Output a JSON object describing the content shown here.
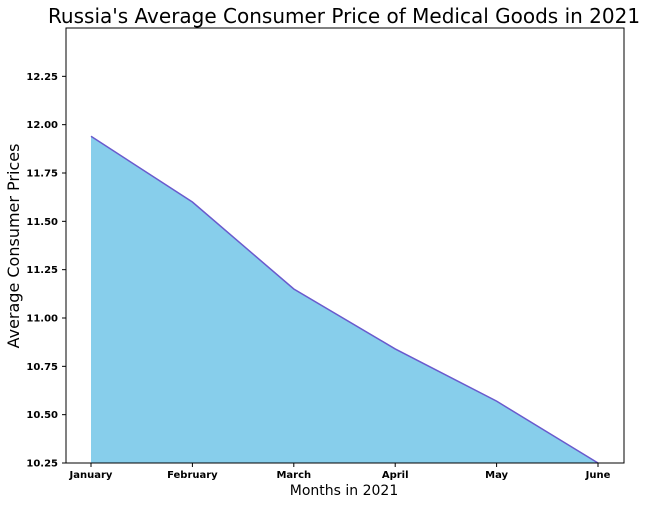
{
  "chart_data": {
    "type": "area",
    "title": "Russia's Average Consumer Price of Medical Goods in 2021",
    "xlabel": "Months in 2021",
    "ylabel": "Average Consumer Prices",
    "categories": [
      "January",
      "February",
      "March",
      "April",
      "May",
      "June"
    ],
    "series": [
      {
        "values": [
          11.94,
          11.6,
          11.15,
          10.84,
          10.57,
          10.25
        ]
      }
    ],
    "ylim": [
      10.25,
      12.5
    ],
    "yticks": [
      10.25,
      10.5,
      10.75,
      11.0,
      11.25,
      11.5,
      11.75,
      12.0,
      12.25
    ],
    "ytick_labels": [
      "10.25",
      "10.50",
      "10.75",
      "11.00",
      "11.25",
      "11.50",
      "11.75",
      "12.00",
      "12.25"
    ],
    "grid": false,
    "colors": {
      "fill": "#87CEEB",
      "line": "#6A5ACD"
    }
  }
}
